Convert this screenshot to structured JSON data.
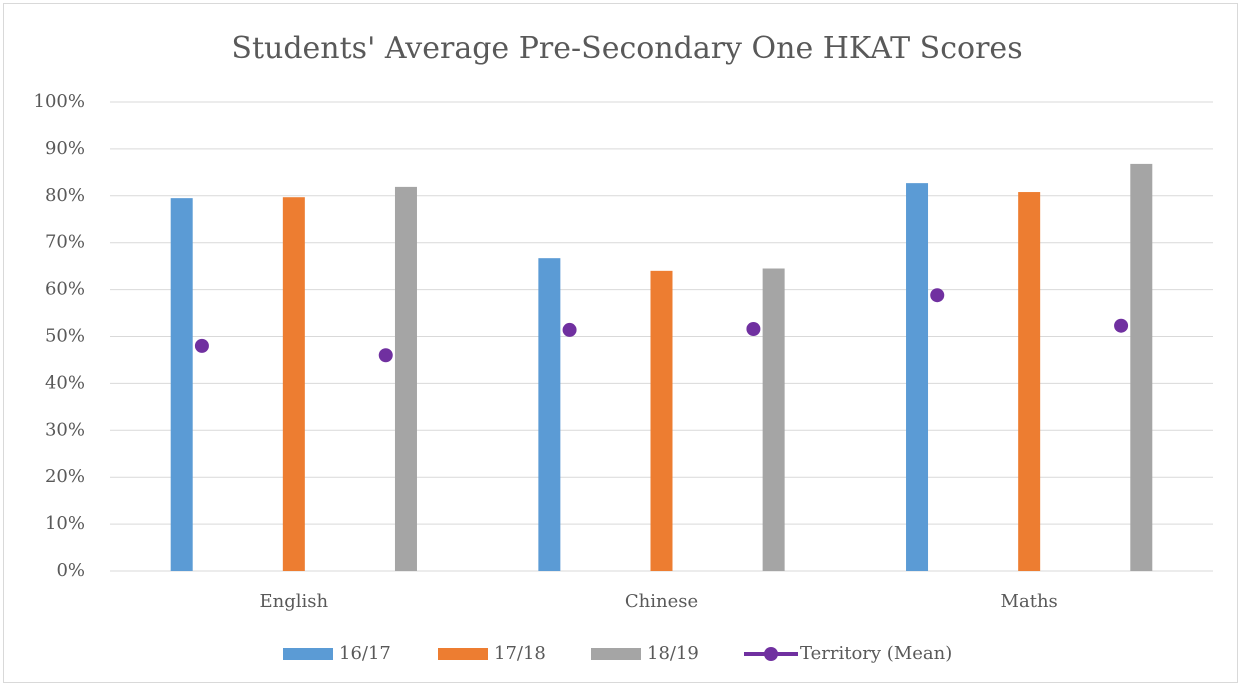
{
  "chart_data": {
    "type": "bar",
    "title": "Students' Average Pre-Secondary One HKAT Scores",
    "categories": [
      "English",
      "Chinese",
      "Maths"
    ],
    "series": [
      {
        "name": "16/17",
        "color": "#5b9bd5",
        "values": [
          79.5,
          66.7,
          82.7
        ]
      },
      {
        "name": "17/18",
        "color": "#ed7d31",
        "values": [
          79.7,
          64.0,
          80.8
        ]
      },
      {
        "name": "18/19",
        "color": "#a5a5a5",
        "values": [
          81.9,
          64.5,
          86.8
        ]
      },
      {
        "name": "Territory (Mean)",
        "type": "scatter",
        "color": "#7030a0",
        "values": [
          48.0,
          46.0,
          51.4,
          51.6,
          58.8,
          52.3
        ]
      }
    ],
    "ylim": [
      0,
      100
    ],
    "yticks": [
      {
        "value": 0,
        "label": "0%"
      },
      {
        "value": 10,
        "label": "10%"
      },
      {
        "value": 20,
        "label": "20%"
      },
      {
        "value": 30,
        "label": "30%"
      },
      {
        "value": 40,
        "label": "40%"
      },
      {
        "value": 50,
        "label": "50%"
      },
      {
        "value": 60,
        "label": "60%"
      },
      {
        "value": 70,
        "label": "70%"
      },
      {
        "value": 80,
        "label": "80%"
      },
      {
        "value": 90,
        "label": "90%"
      },
      {
        "value": 100,
        "label": "100%"
      }
    ],
    "grid": true,
    "legend": "bottom"
  }
}
